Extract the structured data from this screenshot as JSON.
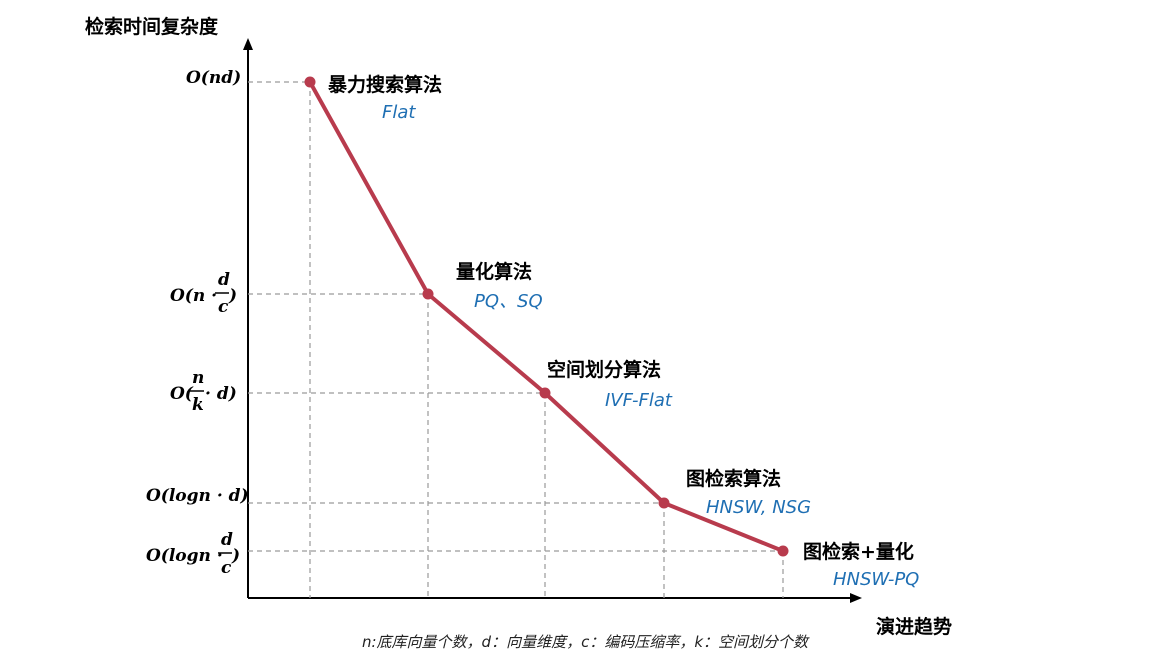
{
  "chart_data": {
    "type": "line",
    "title": "",
    "ylabel": "检索时间复杂度",
    "xlabel": "演进趋势",
    "grid": true,
    "y_ticks": [
      {
        "key": "nd"
      },
      {
        "key": "ndc"
      },
      {
        "key": "nkd"
      },
      {
        "key": "logn_d"
      },
      {
        "key": "logn_dc"
      }
    ],
    "points": [
      {
        "name": "暴力搜索算法",
        "sub": "Flat",
        "x": 1,
        "complexity": "O(nd)"
      },
      {
        "name": "量化算法",
        "sub": "PQ、SQ",
        "x": 2,
        "complexity": "O(n·d/c)"
      },
      {
        "name": "空间划分算法",
        "sub": "IVF-Flat",
        "x": 3,
        "complexity": "O(n/k·d)"
      },
      {
        "name": "图检索算法",
        "sub": "HNSW, NSG",
        "x": 4,
        "complexity": "O(logn·d)"
      },
      {
        "name": "图检索+量化",
        "sub": "HNSW-PQ",
        "x": 5,
        "complexity": "O(logn·d/c)"
      }
    ],
    "footnote": "n:底库向量个数，d：向量维度，c：编码压缩率，k：空间划分个数",
    "series_color": "#b83b4d",
    "sub_color": "#1f6fb3"
  }
}
